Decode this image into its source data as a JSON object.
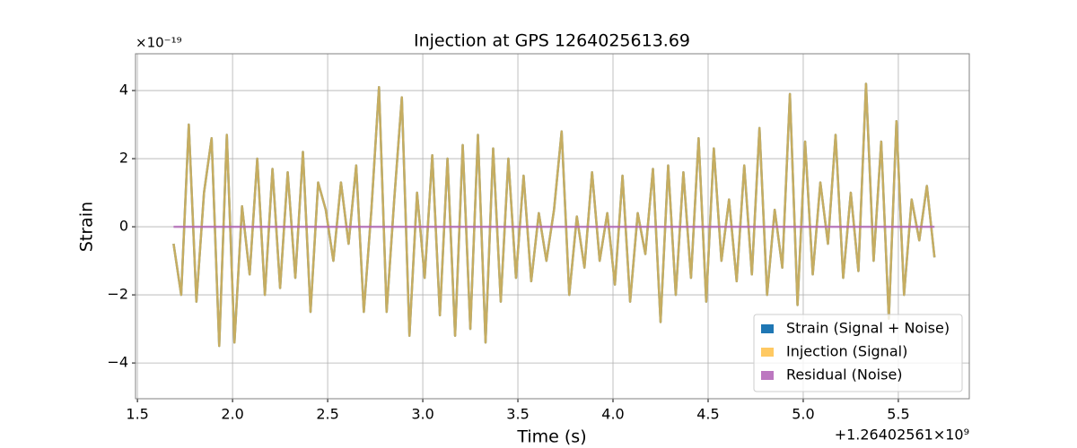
{
  "chart_data": {
    "type": "line",
    "title": "Injection at GPS 1264025613.69",
    "x_label": "Time (s)",
    "y_label": "Strain",
    "x_offset_label": "+1.26402561×10⁹",
    "y_offset_label": "×10⁻¹⁹",
    "x": [
      1.69,
      1.73,
      1.77,
      1.81,
      1.85,
      1.89,
      1.93,
      1.97,
      2.01,
      2.05,
      2.09,
      2.13,
      2.17,
      2.21,
      2.25,
      2.29,
      2.33,
      2.37,
      2.41,
      2.45,
      2.49,
      2.53,
      2.57,
      2.61,
      2.65,
      2.69,
      2.73,
      2.77,
      2.81,
      2.85,
      2.89,
      2.93,
      2.97,
      3.01,
      3.05,
      3.09,
      3.13,
      3.17,
      3.21,
      3.25,
      3.29,
      3.33,
      3.37,
      3.41,
      3.45,
      3.49,
      3.53,
      3.57,
      3.61,
      3.65,
      3.69,
      3.73,
      3.77,
      3.81,
      3.85,
      3.89,
      3.93,
      3.97,
      4.01,
      4.05,
      4.09,
      4.13,
      4.17,
      4.21,
      4.25,
      4.29,
      4.33,
      4.37,
      4.41,
      4.45,
      4.49,
      4.53,
      4.57,
      4.61,
      4.65,
      4.69,
      4.73,
      4.77,
      4.81,
      4.85,
      4.89,
      4.93,
      4.97,
      5.01,
      5.05,
      5.09,
      5.13,
      5.17,
      5.21,
      5.25,
      5.29,
      5.33,
      5.37,
      5.41,
      5.45,
      5.49,
      5.53,
      5.57,
      5.61,
      5.65,
      5.69
    ],
    "series": [
      {
        "name": "Strain (Signal + Noise)",
        "color": "#1f77b4",
        "values": [
          -0.5,
          -2.0,
          3.0,
          -2.2,
          1.0,
          2.6,
          -3.5,
          2.7,
          -3.4,
          0.6,
          -1.4,
          2.0,
          -2.0,
          1.7,
          -1.8,
          1.6,
          -1.5,
          2.2,
          -2.5,
          1.3,
          0.5,
          -1.0,
          1.3,
          -0.5,
          1.8,
          -2.5,
          0.5,
          4.1,
          -2.5,
          0.8,
          3.8,
          -3.2,
          1.0,
          -1.5,
          2.1,
          -2.6,
          2.0,
          -3.2,
          2.4,
          -3.0,
          2.7,
          -3.4,
          2.3,
          -2.2,
          2.0,
          -1.5,
          1.5,
          -1.6,
          0.4,
          -1.0,
          0.5,
          2.8,
          -2.0,
          0.3,
          -1.2,
          1.6,
          -1.0,
          0.4,
          -1.7,
          1.5,
          -2.2,
          0.4,
          -0.8,
          1.7,
          -2.8,
          1.8,
          -2.0,
          1.6,
          -1.5,
          2.6,
          -2.2,
          2.3,
          -1.0,
          0.8,
          -1.6,
          1.8,
          -1.4,
          2.9,
          -2.0,
          0.5,
          -1.2,
          3.9,
          -2.3,
          2.5,
          -1.4,
          1.3,
          -0.5,
          2.7,
          -1.5,
          1.0,
          -1.3,
          4.2,
          -1.0,
          2.5,
          -2.7,
          3.1,
          -2.0,
          0.8,
          -0.4,
          1.2,
          -0.9
        ]
      },
      {
        "name": "Injection (Signal)",
        "color": "#ffbf46",
        "values": [
          -0.5,
          -2.0,
          3.0,
          -2.2,
          1.0,
          2.6,
          -3.5,
          2.7,
          -3.4,
          0.6,
          -1.4,
          2.0,
          -2.0,
          1.7,
          -1.8,
          1.6,
          -1.5,
          2.2,
          -2.5,
          1.3,
          0.5,
          -1.0,
          1.3,
          -0.5,
          1.8,
          -2.5,
          0.5,
          4.1,
          -2.5,
          0.8,
          3.8,
          -3.2,
          1.0,
          -1.5,
          2.1,
          -2.6,
          2.0,
          -3.2,
          2.4,
          -3.0,
          2.7,
          -3.4,
          2.3,
          -2.2,
          2.0,
          -1.5,
          1.5,
          -1.6,
          0.4,
          -1.0,
          0.5,
          2.8,
          -2.0,
          0.3,
          -1.2,
          1.6,
          -1.0,
          0.4,
          -1.7,
          1.5,
          -2.2,
          0.4,
          -0.8,
          1.7,
          -2.8,
          1.8,
          -2.0,
          1.6,
          -1.5,
          2.6,
          -2.2,
          2.3,
          -1.0,
          0.8,
          -1.6,
          1.8,
          -1.4,
          2.9,
          -2.0,
          0.5,
          -1.2,
          3.9,
          -2.3,
          2.5,
          -1.4,
          1.3,
          -0.5,
          2.7,
          -1.5,
          1.0,
          -1.3,
          4.2,
          -1.0,
          2.5,
          -2.7,
          3.1,
          -2.0,
          0.8,
          -0.4,
          1.2,
          -0.9
        ]
      },
      {
        "name": "Residual (Noise)",
        "color": "#b05fb5",
        "values": [
          0,
          0,
          0,
          0,
          0,
          0,
          0,
          0,
          0,
          0,
          0,
          0,
          0,
          0,
          0,
          0,
          0,
          0,
          0,
          0,
          0,
          0,
          0,
          0,
          0,
          0,
          0,
          0,
          0,
          0,
          0,
          0,
          0,
          0,
          0,
          0,
          0,
          0,
          0,
          0,
          0,
          0,
          0,
          0,
          0,
          0,
          0,
          0,
          0,
          0,
          0,
          0,
          0,
          0,
          0,
          0,
          0,
          0,
          0,
          0,
          0,
          0,
          0,
          0,
          0,
          0,
          0,
          0,
          0,
          0,
          0,
          0,
          0,
          0,
          0,
          0,
          0,
          0,
          0,
          0,
          0,
          0,
          0,
          0,
          0,
          0,
          0,
          0,
          0,
          0,
          0,
          0,
          0,
          0,
          0,
          0,
          0,
          0,
          0,
          0,
          0
        ]
      }
    ],
    "xlim": [
      1.49,
      5.873
    ],
    "ylim": [
      -5.05,
      5.08
    ],
    "xticks": [
      1.5,
      {
        "value": 2.0,
        "label": "2.0"
      },
      2.5,
      {
        "value": 3.0,
        "label": "3.0"
      },
      3.5,
      {
        "value": 4.0,
        "label": "4.0"
      },
      4.5,
      {
        "value": 5.0,
        "label": "5.0"
      },
      5.5
    ],
    "yticks": [
      {
        "value": -4,
        "label": "−4"
      },
      {
        "value": -2,
        "label": "−2"
      },
      0,
      2,
      4
    ],
    "grid": true,
    "legend": "lower right"
  }
}
